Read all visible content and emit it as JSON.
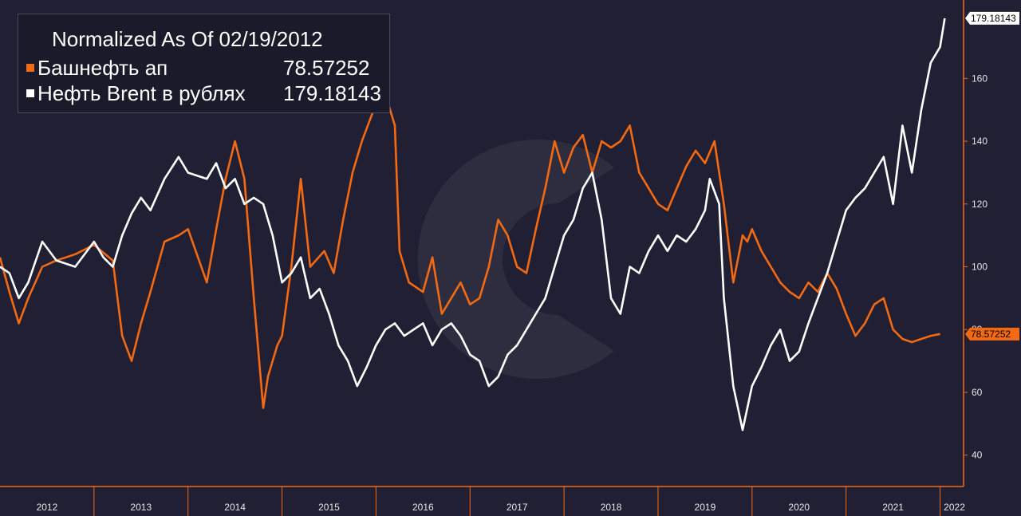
{
  "legend": {
    "title": "Normalized As Of 02/19/2012",
    "entries": [
      {
        "name": "Башнефть ап",
        "value": "78.57252",
        "color": "#f36a12"
      },
      {
        "name": "Нефть Brent в рублях",
        "value": "179.18143",
        "color": "#ffffff"
      }
    ]
  },
  "colors": {
    "background": "#211f33",
    "axis": "#f36a12",
    "brent": "#ffffff",
    "bashneft": "#f36a12"
  },
  "chart_data": {
    "type": "line",
    "title": "Normalized As Of 02/19/2012",
    "ylim": [
      30,
      185
    ],
    "yticks": [
      40,
      60,
      80,
      100,
      120,
      140,
      160
    ],
    "xlim": [
      2012.0,
      2022.25
    ],
    "xticks": [
      "2012",
      "2013",
      "2014",
      "2015",
      "2016",
      "2017",
      "2018",
      "2019",
      "2020",
      "2021",
      "2022"
    ],
    "grid": false,
    "legend_position": "top-left",
    "series": [
      {
        "name": "Башнефть ап",
        "color": "#f36a12",
        "last_value": "78.57252",
        "x": [
          2012.0,
          2012.1,
          2012.2,
          2012.3,
          2012.45,
          2012.6,
          2012.8,
          2013.0,
          2013.2,
          2013.3,
          2013.4,
          2013.5,
          2013.6,
          2013.75,
          2013.9,
          2014.0,
          2014.2,
          2014.3,
          2014.4,
          2014.5,
          2014.6,
          2014.7,
          2014.8,
          2014.85,
          2014.95,
          2015.0,
          2015.1,
          2015.2,
          2015.3,
          2015.45,
          2015.55,
          2015.65,
          2015.75,
          2015.85,
          2016.0,
          2016.1,
          2016.2,
          2016.25,
          2016.35,
          2016.5,
          2016.6,
          2016.7,
          2016.8,
          2016.9,
          2017.0,
          2017.1,
          2017.2,
          2017.3,
          2017.4,
          2017.5,
          2017.6,
          2017.7,
          2017.8,
          2017.9,
          2018.0,
          2018.1,
          2018.2,
          2018.3,
          2018.4,
          2018.5,
          2018.6,
          2018.7,
          2018.8,
          2018.9,
          2019.0,
          2019.1,
          2019.2,
          2019.3,
          2019.4,
          2019.5,
          2019.6,
          2019.7,
          2019.8,
          2019.9,
          2019.95,
          2020.0,
          2020.1,
          2020.2,
          2020.3,
          2020.4,
          2020.5,
          2020.6,
          2020.7,
          2020.8,
          2020.9,
          2021.0,
          2021.1,
          2021.2,
          2021.3,
          2021.4,
          2021.5,
          2021.6,
          2021.7,
          2021.8,
          2021.9,
          2022.0
        ],
        "y": [
          103,
          92,
          82,
          90,
          100,
          102,
          104,
          107,
          102,
          78,
          70,
          82,
          92,
          108,
          110,
          112,
          95,
          112,
          128,
          140,
          128,
          90,
          55,
          65,
          75,
          78,
          100,
          128,
          100,
          105,
          98,
          115,
          130,
          140,
          152,
          155,
          145,
          105,
          95,
          92,
          103,
          85,
          90,
          95,
          88,
          90,
          100,
          115,
          110,
          100,
          98,
          112,
          125,
          140,
          130,
          138,
          142,
          130,
          140,
          138,
          140,
          145,
          130,
          125,
          120,
          118,
          125,
          132,
          137,
          133,
          140,
          120,
          95,
          110,
          108,
          112,
          105,
          100,
          95,
          92,
          90,
          95,
          92,
          98,
          93,
          85,
          78,
          82,
          88,
          90,
          80,
          77,
          76,
          77,
          78,
          78.57252
        ]
      },
      {
        "name": "Нефть Brent в рублях",
        "color": "#ffffff",
        "last_value": "179.18143",
        "x": [
          2012.0,
          2012.1,
          2012.2,
          2012.3,
          2012.45,
          2012.6,
          2012.8,
          2013.0,
          2013.1,
          2013.2,
          2013.3,
          2013.4,
          2013.5,
          2013.6,
          2013.75,
          2013.9,
          2014.0,
          2014.2,
          2014.3,
          2014.4,
          2014.5,
          2014.6,
          2014.7,
          2014.8,
          2014.9,
          2015.0,
          2015.1,
          2015.2,
          2015.3,
          2015.4,
          2015.5,
          2015.6,
          2015.7,
          2015.8,
          2015.9,
          2016.0,
          2016.1,
          2016.2,
          2016.3,
          2016.4,
          2016.5,
          2016.6,
          2016.7,
          2016.8,
          2016.9,
          2017.0,
          2017.1,
          2017.2,
          2017.3,
          2017.4,
          2017.5,
          2017.6,
          2017.7,
          2017.8,
          2017.9,
          2018.0,
          2018.1,
          2018.2,
          2018.3,
          2018.4,
          2018.5,
          2018.6,
          2018.7,
          2018.8,
          2018.9,
          2019.0,
          2019.1,
          2019.2,
          2019.3,
          2019.4,
          2019.5,
          2019.55,
          2019.65,
          2019.7,
          2019.8,
          2019.9,
          2020.0,
          2020.1,
          2020.2,
          2020.3,
          2020.4,
          2020.5,
          2020.6,
          2020.7,
          2020.8,
          2020.9,
          2021.0,
          2021.1,
          2021.2,
          2021.3,
          2021.4,
          2021.5,
          2021.6,
          2021.7,
          2021.8,
          2021.9,
          2022.0,
          2022.05
        ],
        "y": [
          100,
          98,
          90,
          95,
          108,
          102,
          100,
          108,
          103,
          100,
          110,
          117,
          122,
          118,
          128,
          135,
          130,
          128,
          133,
          125,
          128,
          120,
          122,
          120,
          110,
          95,
          98,
          103,
          90,
          93,
          85,
          75,
          70,
          62,
          68,
          75,
          80,
          82,
          78,
          80,
          82,
          75,
          80,
          82,
          78,
          72,
          70,
          62,
          65,
          72,
          75,
          80,
          85,
          90,
          100,
          110,
          115,
          125,
          130,
          115,
          90,
          85,
          100,
          98,
          105,
          110,
          105,
          110,
          108,
          112,
          118,
          128,
          120,
          90,
          62,
          48,
          62,
          68,
          75,
          80,
          70,
          73,
          82,
          90,
          98,
          108,
          118,
          122,
          125,
          130,
          135,
          120,
          145,
          130,
          150,
          165,
          170,
          179.18143
        ]
      }
    ]
  }
}
